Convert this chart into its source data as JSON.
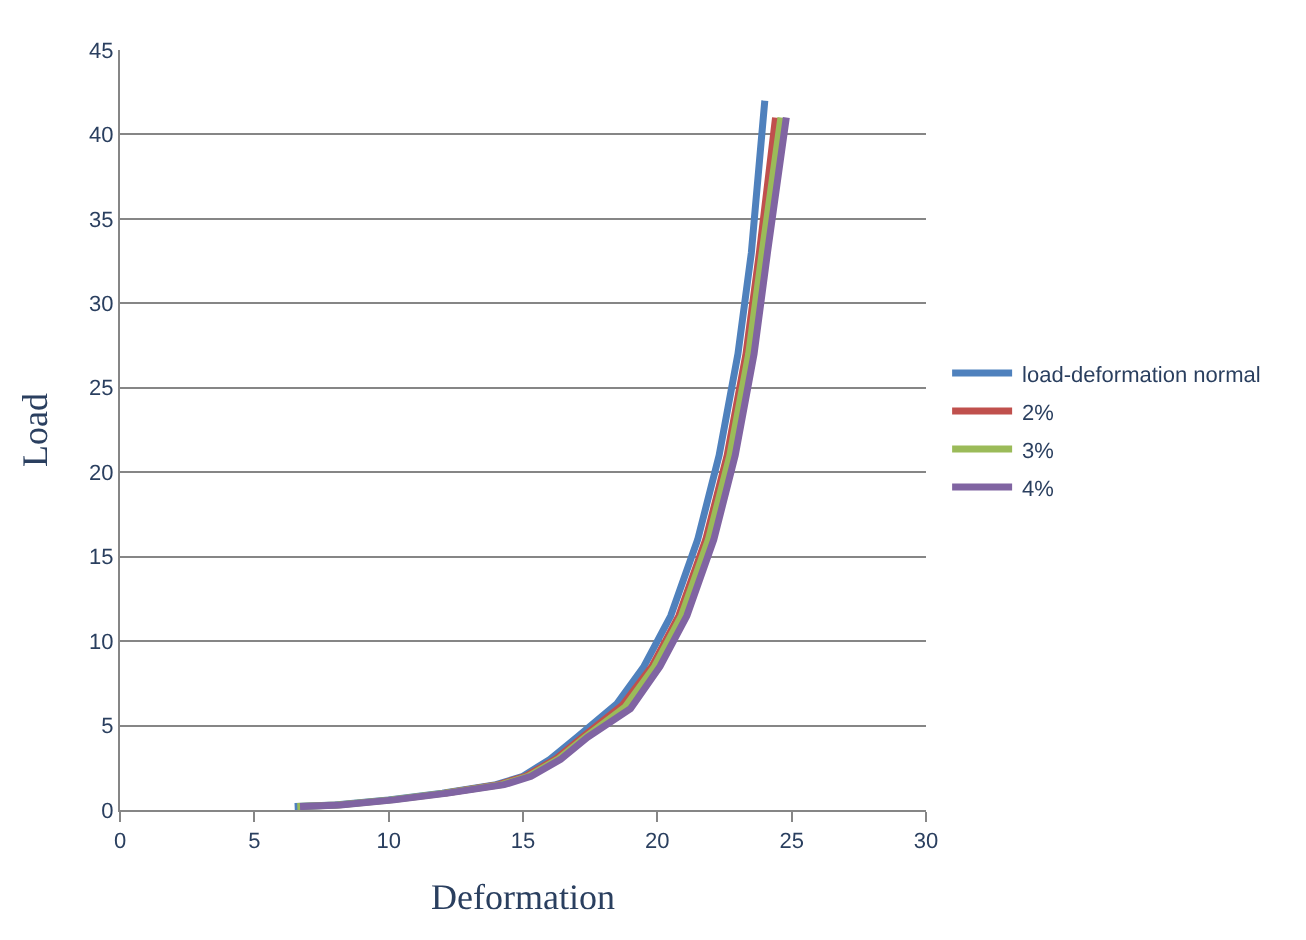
{
  "chart_data": {
    "type": "line",
    "xlabel": "Deformation",
    "ylabel": "Load",
    "xlim": [
      0,
      30
    ],
    "xticks": [
      0,
      5,
      10,
      15,
      20,
      25,
      30
    ],
    "ylim": [
      0,
      45
    ],
    "yticks": [
      0,
      5,
      10,
      15,
      20,
      25,
      30,
      35,
      40,
      45
    ],
    "grid": "y",
    "legend": "right",
    "marker": "none",
    "line_style": "solid",
    "series": [
      {
        "name": "load-deformation normal",
        "color": "#4f81bd",
        "x": [
          6.5,
          8,
          10,
          12,
          14,
          15,
          16,
          17,
          18.5,
          19.5,
          20.5,
          21.5,
          22.3,
          23,
          23.5,
          24
        ],
        "values": [
          0.2,
          0.3,
          0.6,
          1,
          1.5,
          2,
          3,
          4.3,
          6.3,
          8.5,
          11.5,
          16,
          21,
          27,
          33,
          42
        ]
      },
      {
        "name": "2%",
        "color": "#c0504d",
        "x": [
          12.1,
          14.1,
          15.1,
          16.2,
          17.2,
          18.7,
          19.8,
          20.8,
          21.8,
          22.6,
          23.3,
          23.8,
          24.4
        ],
        "values": [
          1,
          1.5,
          2,
          3,
          4.3,
          6.2,
          8.5,
          11.5,
          16,
          21,
          27,
          33,
          41
        ]
      },
      {
        "name": "3%",
        "color": "#9bbb59",
        "x": [
          6.6,
          8.1,
          10.1,
          12.1,
          14.2,
          15.2,
          16.3,
          17.3,
          18.8,
          19.9,
          20.9,
          21.9,
          22.7,
          23.4,
          23.9,
          24.6
        ],
        "values": [
          0.2,
          0.3,
          0.6,
          1,
          1.5,
          2,
          3,
          4.3,
          6.1,
          8.5,
          11.5,
          16,
          21,
          27,
          33,
          41
        ]
      },
      {
        "name": "4%",
        "color": "#8064a2",
        "x": [
          6.7,
          8.2,
          10.2,
          12.2,
          14.3,
          15.3,
          16.4,
          17.4,
          19,
          20.1,
          21.1,
          22.1,
          22.9,
          23.6,
          24.1,
          24.8
        ],
        "values": [
          0.2,
          0.3,
          0.6,
          1,
          1.5,
          2,
          3,
          4.3,
          6,
          8.5,
          11.5,
          16,
          21,
          27,
          33,
          41
        ]
      }
    ]
  }
}
